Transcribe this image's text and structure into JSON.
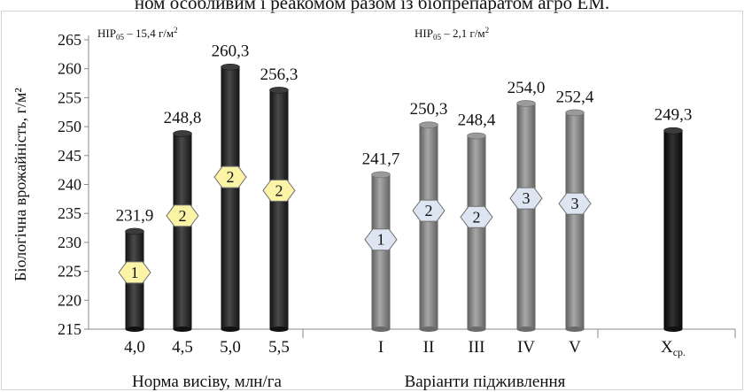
{
  "caption": "ном особливим і реакомом разом із біопрепаратом агро ЕМ.",
  "chart_data": {
    "type": "bar",
    "ylabel": "Біологічна врожайність, г/м²",
    "ylim": [
      215,
      265
    ],
    "yticks": [
      "215",
      "220",
      "225",
      "230",
      "235",
      "240",
      "245",
      "250",
      "255",
      "260",
      "265"
    ],
    "grid": false,
    "groups": [
      {
        "xlabel": "Норма висіву, млн/га",
        "annotation": {
          "prefix": "НІР",
          "sub": "05",
          "text": " – 15,4 г/м",
          "sup": "2"
        },
        "marker_shape": "hexagon",
        "bar_color": "#3a3a3a",
        "marker_fill": "#fbf3a6",
        "bars": [
          {
            "category": "4,0",
            "value": 231.9,
            "label": "231,9",
            "marker": "1"
          },
          {
            "category": "4,5",
            "value": 248.8,
            "label": "248,8",
            "marker": "2"
          },
          {
            "category": "5,0",
            "value": 260.3,
            "label": "260,3",
            "marker": "2"
          },
          {
            "category": "5,5",
            "value": 256.3,
            "label": "256,3",
            "marker": "2"
          }
        ]
      },
      {
        "xlabel": "Варіанти підживлення",
        "annotation": {
          "prefix": "НІР",
          "sub": "05",
          "text": " – 2,1 г/м",
          "sup": "2"
        },
        "marker_shape": "hexagon",
        "bar_color": "#8c8c8c",
        "marker_fill": "#dde5f2",
        "bars": [
          {
            "category": "I",
            "value": 241.7,
            "label": "241,7",
            "marker": "1"
          },
          {
            "category": "II",
            "value": 250.3,
            "label": "250,3",
            "marker": "2"
          },
          {
            "category": "III",
            "value": 248.4,
            "label": "248,4",
            "marker": "2"
          },
          {
            "category": "IV",
            "value": 254.0,
            "label": "254,0",
            "marker": "3"
          },
          {
            "category": "V",
            "value": 252.4,
            "label": "252,4",
            "marker": "3"
          }
        ]
      },
      {
        "xlabel": "",
        "bar_color": "#202020",
        "bars": [
          {
            "category": "X",
            "category_sub": "ср.",
            "value": 249.3,
            "label": "249,3"
          }
        ]
      }
    ]
  }
}
